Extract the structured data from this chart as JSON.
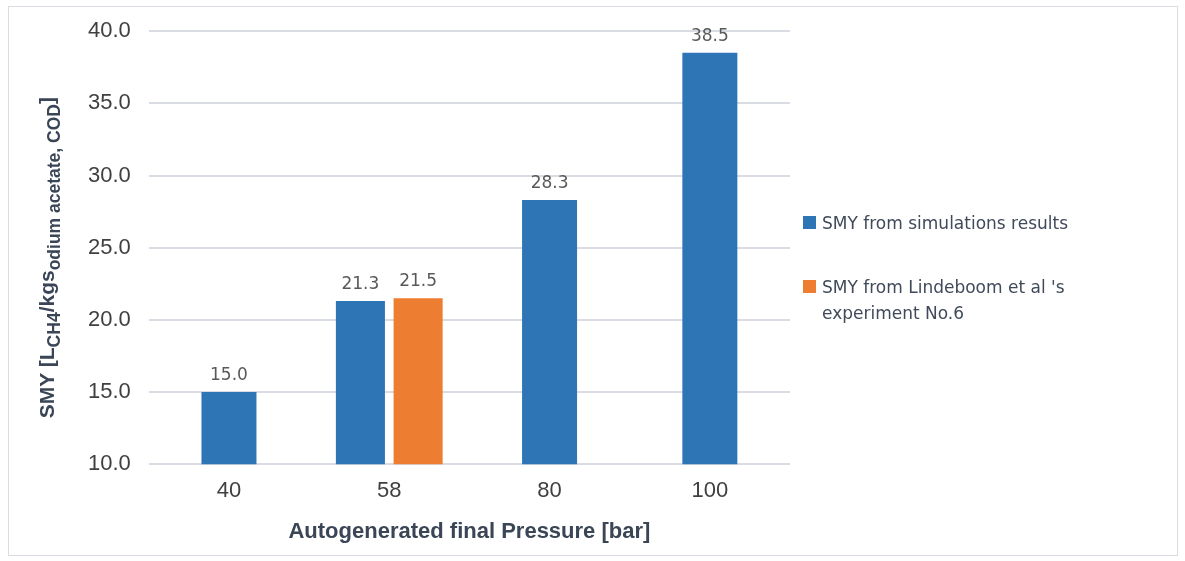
{
  "chart_data": {
    "type": "bar",
    "xlabel": "Autogenerated final Pressure [bar]",
    "ylabel": "SMY [L$_{CH4}$/kgs$_{odium acetate, COD}$]",
    "categories": [
      "40",
      "58",
      "80",
      "100"
    ],
    "series": [
      {
        "name": "SMY from simulations results",
        "color": "#2e75b6",
        "values": [
          15.0,
          21.3,
          28.3,
          38.5
        ],
        "value_labels": [
          "15.0",
          "21.3",
          "28.3",
          "38.5"
        ]
      },
      {
        "name": "SMY from Lindeboom et al 's experiment No.6",
        "color": "#ed7d31",
        "values": [
          null,
          21.5,
          null,
          null
        ],
        "value_labels": [
          null,
          "21.5",
          null,
          null
        ]
      }
    ],
    "ylim": [
      10,
      40
    ],
    "yticks": [
      {
        "value": 10,
        "label": "10.0"
      },
      {
        "value": 15,
        "label": "15.0"
      },
      {
        "value": 20,
        "label": "20.0"
      },
      {
        "value": 25,
        "label": "25.0"
      },
      {
        "value": 30,
        "label": "30.0"
      },
      {
        "value": 35,
        "label": "35.0"
      },
      {
        "value": 40,
        "label": "40.0"
      }
    ],
    "grid": "y",
    "legend": "right"
  }
}
